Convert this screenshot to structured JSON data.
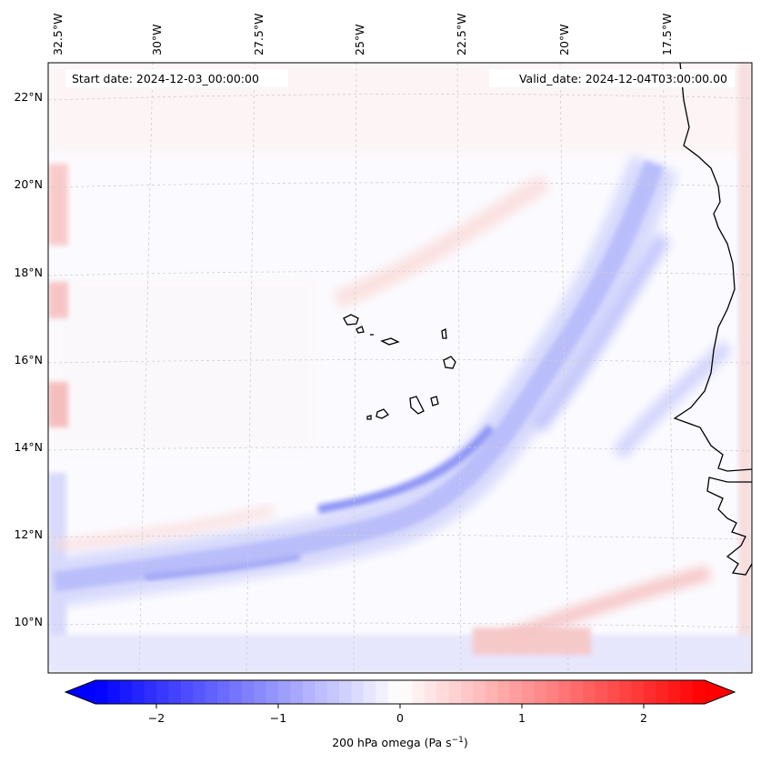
{
  "annotations": {
    "start_date": "Start date: 2024-12-03_00:00:00",
    "valid_date": "Valid_date: 2024-12-04T03:00:00.00"
  },
  "map": {
    "lon_labels": [
      "32.5°W",
      "30°W",
      "27.5°W",
      "25°W",
      "22.5°W",
      "20°W",
      "17.5°W"
    ],
    "lat_labels": [
      "22°N",
      "20°N",
      "18°N",
      "16°N",
      "14°N",
      "12°N",
      "10°N"
    ],
    "field": "200 hPa omega",
    "region": "Cape Verde Islands and West African coast"
  },
  "colorbar": {
    "label": "200 hPa omega (Pa s",
    "label_sup": "−1",
    "label_close": ")",
    "ticks": [
      "−2",
      "−1",
      "0",
      "1",
      "2"
    ],
    "tick_values": [
      -2,
      -1,
      0,
      1,
      2
    ],
    "vmin": -2.5,
    "vmax": 2.5,
    "cmap": "bwr",
    "colors": {
      "min": "#0000ff",
      "mid": "#ffffff",
      "max": "#ff0000"
    }
  }
}
